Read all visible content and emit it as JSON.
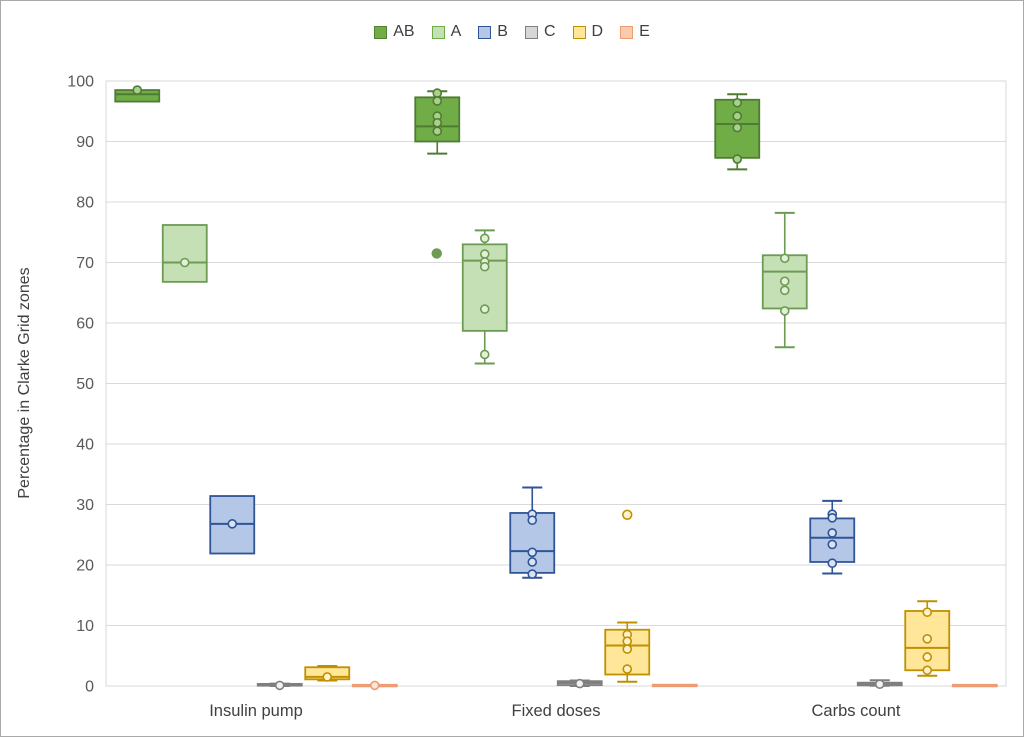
{
  "legend": {
    "items": [
      {
        "label": "AB",
        "fill": "#70AD47",
        "stroke": "#548235"
      },
      {
        "label": "A",
        "fill": "#C5E0B4",
        "stroke": "#70AD47"
      },
      {
        "label": "B",
        "fill": "#B4C7E7",
        "stroke": "#2F5597"
      },
      {
        "label": "C",
        "fill": "#D6D6D6",
        "stroke": "#7F7F7F"
      },
      {
        "label": "D",
        "fill": "#FFE699",
        "stroke": "#BF9000"
      },
      {
        "label": "E",
        "fill": "#F8CBAD",
        "stroke": "#ED9C73"
      }
    ]
  },
  "chart_data": {
    "type": "boxplot",
    "title": "",
    "xlabel": "",
    "ylabel": "Percentage in Clarke Grid zones",
    "ylim": [
      0,
      100
    ],
    "ytick_step": 10,
    "yticks": [
      0,
      10,
      20,
      30,
      40,
      50,
      60,
      70,
      80,
      90,
      100
    ],
    "grid": true,
    "legend_position": "top-center",
    "categories": [
      "Insulin pump",
      "Fixed doses",
      "Carbs count"
    ],
    "colors": {
      "gridline": "#D9D9D9",
      "tick_label": "#595959",
      "axis_label": "#404040",
      "category_label": "#404040",
      "background": "#FFFFFF"
    },
    "series": [
      {
        "name": "AB",
        "fill": "#70AD47",
        "stroke": "#4F7B33",
        "point_fill": "#A9D18E",
        "boxes": [
          {
            "whislo": 96.6,
            "q1": 96.6,
            "med": 97.8,
            "q3": 98.5,
            "whishi": 98.5,
            "points": [
              98.5
            ],
            "outliers": []
          },
          {
            "whislo": 88.0,
            "q1": 90.0,
            "med": 92.5,
            "q3": 97.3,
            "whishi": 98.3,
            "points": [
              98.0,
              96.7,
              94.2,
              93.1,
              91.7
            ],
            "outliers": []
          },
          {
            "whislo": 85.4,
            "q1": 87.3,
            "med": 92.9,
            "q3": 96.9,
            "whishi": 97.8,
            "points": [
              96.4,
              94.2,
              92.3,
              87.1
            ],
            "outliers": []
          }
        ]
      },
      {
        "name": "A",
        "fill": "#C5E0B4",
        "stroke": "#6D9B53",
        "point_fill": "#E2F0D9",
        "boxes": [
          {
            "whislo": 66.8,
            "q1": 66.8,
            "med": 70.0,
            "q3": 76.2,
            "whishi": 76.2,
            "points": [
              70.0
            ],
            "outliers": []
          },
          {
            "whislo": 53.3,
            "q1": 58.7,
            "med": 70.3,
            "q3": 73.0,
            "whishi": 75.3,
            "points": [
              74.0,
              71.4,
              70.1,
              69.3,
              62.3,
              54.8
            ],
            "outliers": [
              {
                "value": 71.5,
                "dx": -48,
                "filled": true
              }
            ]
          },
          {
            "whislo": 56.0,
            "q1": 62.4,
            "med": 68.5,
            "q3": 71.2,
            "whishi": 78.2,
            "points": [
              70.7,
              66.9,
              65.4,
              62.0
            ],
            "outliers": []
          }
        ]
      },
      {
        "name": "B",
        "fill": "#B4C7E7",
        "stroke": "#2F5597",
        "point_fill": "#DAE3F3",
        "boxes": [
          {
            "whislo": 21.9,
            "q1": 21.9,
            "med": 26.8,
            "q3": 31.4,
            "whishi": 31.4,
            "points": [
              26.8
            ],
            "outliers": []
          },
          {
            "whislo": 17.9,
            "q1": 18.7,
            "med": 22.3,
            "q3": 28.6,
            "whishi": 32.8,
            "points": [
              28.4,
              27.4,
              22.1,
              20.5,
              18.5
            ],
            "outliers": []
          },
          {
            "whislo": 18.6,
            "q1": 20.5,
            "med": 24.5,
            "q3": 27.7,
            "whishi": 30.6,
            "points": [
              28.4,
              27.8,
              25.3,
              23.4,
              20.3
            ],
            "outliers": []
          }
        ]
      },
      {
        "name": "C",
        "fill": "#D6D6D6",
        "stroke": "#7F7F7F",
        "point_fill": "#F2F2F2",
        "boxes": [
          {
            "whislo": 0.0,
            "q1": 0.05,
            "med": 0.2,
            "q3": 0.35,
            "whishi": 0.4,
            "points": [
              0.1
            ],
            "outliers": []
          },
          {
            "whislo": 0.0,
            "q1": 0.15,
            "med": 0.5,
            "q3": 0.8,
            "whishi": 0.9,
            "points": [
              0.4
            ],
            "outliers": []
          },
          {
            "whislo": 0.05,
            "q1": 0.1,
            "med": 0.3,
            "q3": 0.55,
            "whishi": 0.95,
            "points": [
              0.3
            ],
            "outliers": []
          }
        ]
      },
      {
        "name": "D",
        "fill": "#FFE699",
        "stroke": "#BF9000",
        "point_fill": "#FFF2CC",
        "boxes": [
          {
            "whislo": 0.9,
            "q1": 1.1,
            "med": 1.5,
            "q3": 3.1,
            "whishi": 3.3,
            "points": [
              1.5
            ],
            "outliers": []
          },
          {
            "whislo": 0.7,
            "q1": 1.9,
            "med": 6.7,
            "q3": 9.3,
            "whishi": 10.5,
            "points": [
              8.5,
              7.4,
              6.1,
              2.8
            ],
            "outliers": [
              {
                "value": 28.3,
                "dx": 0,
                "filled": false
              }
            ]
          },
          {
            "whislo": 1.7,
            "q1": 2.6,
            "med": 6.3,
            "q3": 12.4,
            "whishi": 14.0,
            "points": [
              12.2,
              7.8,
              4.8,
              2.6
            ],
            "outliers": []
          }
        ]
      },
      {
        "name": "E",
        "fill": "#F8CBAD",
        "stroke": "#ED9C73",
        "point_fill": "#FBE5D6",
        "boxes": [
          {
            "whislo": 0.0,
            "q1": 0.03,
            "med": 0.1,
            "q3": 0.2,
            "whishi": 0.2,
            "points": [
              0.1
            ],
            "outliers": []
          },
          {
            "whislo": 0.0,
            "q1": 0.03,
            "med": 0.12,
            "q3": 0.22,
            "whishi": 0.22,
            "points": [],
            "outliers": []
          },
          {
            "whislo": 0.0,
            "q1": 0.03,
            "med": 0.1,
            "q3": 0.2,
            "whishi": 0.2,
            "points": [],
            "outliers": []
          }
        ]
      }
    ]
  }
}
